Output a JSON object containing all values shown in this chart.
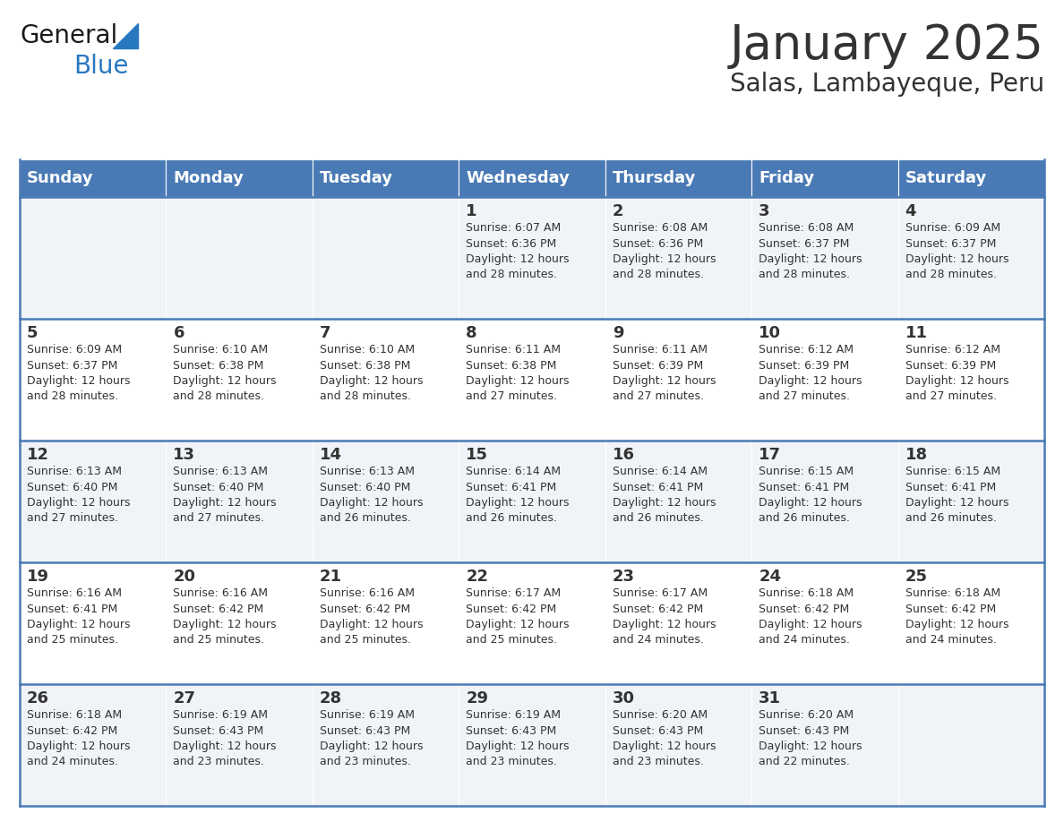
{
  "title": "January 2025",
  "subtitle": "Salas, Lambayeque, Peru",
  "header_color": "#4a7ab5",
  "header_text_color": "#ffffff",
  "cell_bg_even": "#f0f4f8",
  "cell_bg_odd": "#ffffff",
  "divider_color": "#4a7ab5",
  "text_color": "#333333",
  "days_of_week": [
    "Sunday",
    "Monday",
    "Tuesday",
    "Wednesday",
    "Thursday",
    "Friday",
    "Saturday"
  ],
  "logo_general_color": "#1a1a1a",
  "logo_blue_color": "#2878c0",
  "title_fontsize": 38,
  "subtitle_fontsize": 20,
  "dow_fontsize": 13,
  "day_num_fontsize": 13,
  "info_fontsize": 9,
  "calendar_data": [
    [
      {
        "day": "",
        "info": ""
      },
      {
        "day": "",
        "info": ""
      },
      {
        "day": "",
        "info": ""
      },
      {
        "day": "1",
        "info": "Sunrise: 6:07 AM\nSunset: 6:36 PM\nDaylight: 12 hours\nand 28 minutes."
      },
      {
        "day": "2",
        "info": "Sunrise: 6:08 AM\nSunset: 6:36 PM\nDaylight: 12 hours\nand 28 minutes."
      },
      {
        "day": "3",
        "info": "Sunrise: 6:08 AM\nSunset: 6:37 PM\nDaylight: 12 hours\nand 28 minutes."
      },
      {
        "day": "4",
        "info": "Sunrise: 6:09 AM\nSunset: 6:37 PM\nDaylight: 12 hours\nand 28 minutes."
      }
    ],
    [
      {
        "day": "5",
        "info": "Sunrise: 6:09 AM\nSunset: 6:37 PM\nDaylight: 12 hours\nand 28 minutes."
      },
      {
        "day": "6",
        "info": "Sunrise: 6:10 AM\nSunset: 6:38 PM\nDaylight: 12 hours\nand 28 minutes."
      },
      {
        "day": "7",
        "info": "Sunrise: 6:10 AM\nSunset: 6:38 PM\nDaylight: 12 hours\nand 28 minutes."
      },
      {
        "day": "8",
        "info": "Sunrise: 6:11 AM\nSunset: 6:38 PM\nDaylight: 12 hours\nand 27 minutes."
      },
      {
        "day": "9",
        "info": "Sunrise: 6:11 AM\nSunset: 6:39 PM\nDaylight: 12 hours\nand 27 minutes."
      },
      {
        "day": "10",
        "info": "Sunrise: 6:12 AM\nSunset: 6:39 PM\nDaylight: 12 hours\nand 27 minutes."
      },
      {
        "day": "11",
        "info": "Sunrise: 6:12 AM\nSunset: 6:39 PM\nDaylight: 12 hours\nand 27 minutes."
      }
    ],
    [
      {
        "day": "12",
        "info": "Sunrise: 6:13 AM\nSunset: 6:40 PM\nDaylight: 12 hours\nand 27 minutes."
      },
      {
        "day": "13",
        "info": "Sunrise: 6:13 AM\nSunset: 6:40 PM\nDaylight: 12 hours\nand 27 minutes."
      },
      {
        "day": "14",
        "info": "Sunrise: 6:13 AM\nSunset: 6:40 PM\nDaylight: 12 hours\nand 26 minutes."
      },
      {
        "day": "15",
        "info": "Sunrise: 6:14 AM\nSunset: 6:41 PM\nDaylight: 12 hours\nand 26 minutes."
      },
      {
        "day": "16",
        "info": "Sunrise: 6:14 AM\nSunset: 6:41 PM\nDaylight: 12 hours\nand 26 minutes."
      },
      {
        "day": "17",
        "info": "Sunrise: 6:15 AM\nSunset: 6:41 PM\nDaylight: 12 hours\nand 26 minutes."
      },
      {
        "day": "18",
        "info": "Sunrise: 6:15 AM\nSunset: 6:41 PM\nDaylight: 12 hours\nand 26 minutes."
      }
    ],
    [
      {
        "day": "19",
        "info": "Sunrise: 6:16 AM\nSunset: 6:41 PM\nDaylight: 12 hours\nand 25 minutes."
      },
      {
        "day": "20",
        "info": "Sunrise: 6:16 AM\nSunset: 6:42 PM\nDaylight: 12 hours\nand 25 minutes."
      },
      {
        "day": "21",
        "info": "Sunrise: 6:16 AM\nSunset: 6:42 PM\nDaylight: 12 hours\nand 25 minutes."
      },
      {
        "day": "22",
        "info": "Sunrise: 6:17 AM\nSunset: 6:42 PM\nDaylight: 12 hours\nand 25 minutes."
      },
      {
        "day": "23",
        "info": "Sunrise: 6:17 AM\nSunset: 6:42 PM\nDaylight: 12 hours\nand 24 minutes."
      },
      {
        "day": "24",
        "info": "Sunrise: 6:18 AM\nSunset: 6:42 PM\nDaylight: 12 hours\nand 24 minutes."
      },
      {
        "day": "25",
        "info": "Sunrise: 6:18 AM\nSunset: 6:42 PM\nDaylight: 12 hours\nand 24 minutes."
      }
    ],
    [
      {
        "day": "26",
        "info": "Sunrise: 6:18 AM\nSunset: 6:42 PM\nDaylight: 12 hours\nand 24 minutes."
      },
      {
        "day": "27",
        "info": "Sunrise: 6:19 AM\nSunset: 6:43 PM\nDaylight: 12 hours\nand 23 minutes."
      },
      {
        "day": "28",
        "info": "Sunrise: 6:19 AM\nSunset: 6:43 PM\nDaylight: 12 hours\nand 23 minutes."
      },
      {
        "day": "29",
        "info": "Sunrise: 6:19 AM\nSunset: 6:43 PM\nDaylight: 12 hours\nand 23 minutes."
      },
      {
        "day": "30",
        "info": "Sunrise: 6:20 AM\nSunset: 6:43 PM\nDaylight: 12 hours\nand 23 minutes."
      },
      {
        "day": "31",
        "info": "Sunrise: 6:20 AM\nSunset: 6:43 PM\nDaylight: 12 hours\nand 22 minutes."
      },
      {
        "day": "",
        "info": ""
      }
    ]
  ]
}
